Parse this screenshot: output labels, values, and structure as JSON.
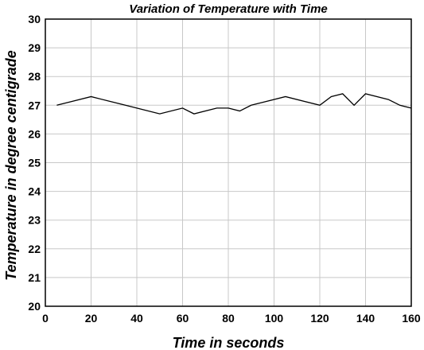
{
  "chart_data": {
    "type": "line",
    "title": "Variation of Temperature with Time",
    "xlabel": "Time in seconds",
    "ylabel": "Temperature in degree centigrade",
    "xlim": [
      0,
      160
    ],
    "ylim": [
      20,
      30
    ],
    "xticks": [
      0,
      20,
      40,
      60,
      80,
      100,
      120,
      140,
      160
    ],
    "yticks": [
      20,
      21,
      22,
      23,
      24,
      25,
      26,
      27,
      28,
      29,
      30
    ],
    "grid": true,
    "series": [
      {
        "x": [
          5,
          20,
          35,
          50,
          60,
          65,
          75,
          80,
          85,
          90,
          105,
          120,
          125,
          130,
          135,
          140,
          150,
          155,
          160
        ],
        "y": [
          27.0,
          27.3,
          27.0,
          26.7,
          26.9,
          26.7,
          26.9,
          26.9,
          26.8,
          27.0,
          27.3,
          27.0,
          27.3,
          27.4,
          27.0,
          27.4,
          27.2,
          27.0,
          26.9
        ]
      }
    ]
  }
}
